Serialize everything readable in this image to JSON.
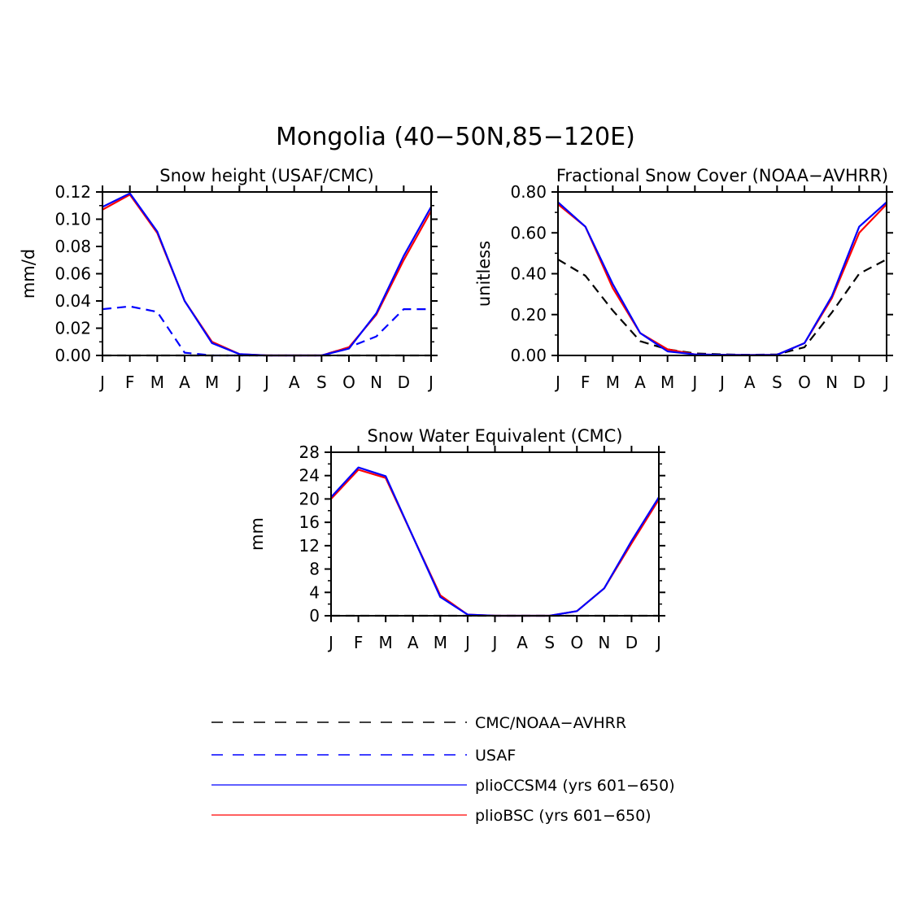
{
  "title": "Mongolia (40−50N,85−120E)",
  "months": [
    "J",
    "F",
    "M",
    "A",
    "M",
    "J",
    "J",
    "A",
    "S",
    "O",
    "N",
    "D",
    "J"
  ],
  "colors": {
    "obs": "#000000",
    "usaf": "#0000ff",
    "ccsm4": "#0000ff",
    "bsc": "#ff0000"
  },
  "chart_data": [
    {
      "type": "line",
      "title": "Snow height (USAF/CMC)",
      "xlabel": "",
      "ylabel": "mm/d",
      "categories": [
        "J",
        "F",
        "M",
        "A",
        "M",
        "J",
        "J",
        "A",
        "S",
        "O",
        "N",
        "D",
        "J"
      ],
      "ylim": [
        0,
        0.12
      ],
      "yticks": [
        0,
        0.02,
        0.04,
        0.06,
        0.08,
        0.1,
        0.12
      ],
      "ytick_labels": [
        "0.00",
        "0.02",
        "0.04",
        "0.06",
        "0.08",
        "0.10",
        "0.12"
      ],
      "series": [
        {
          "name": "CMC/NOAA-AVHRR",
          "style": "obs",
          "values": [
            0,
            0,
            0,
            0,
            0,
            0,
            0,
            0,
            0,
            0,
            0,
            0,
            0
          ]
        },
        {
          "name": "USAF",
          "style": "usaf",
          "values": [
            0.034,
            0.036,
            0.032,
            0.002,
            0,
            0,
            0,
            0,
            0,
            0.006,
            0.014,
            0.034,
            0.034
          ]
        },
        {
          "name": "plioBSC (yrs 601−650)",
          "style": "bsc",
          "values": [
            0.107,
            0.118,
            0.09,
            0.04,
            0.01,
            0.001,
            0,
            0,
            0,
            0.006,
            0.03,
            0.07,
            0.106
          ]
        },
        {
          "name": "plioCCSM4 (yrs 601−650)",
          "style": "ccsm4",
          "values": [
            0.109,
            0.119,
            0.091,
            0.04,
            0.009,
            0.001,
            0,
            0,
            0,
            0.005,
            0.031,
            0.073,
            0.109
          ]
        }
      ]
    },
    {
      "type": "line",
      "title": "Fractional Snow Cover (NOAA−AVHRR)",
      "xlabel": "",
      "ylabel": "unitless",
      "categories": [
        "J",
        "F",
        "M",
        "A",
        "M",
        "J",
        "J",
        "A",
        "S",
        "O",
        "N",
        "D",
        "J"
      ],
      "ylim": [
        0,
        0.8
      ],
      "yticks": [
        0,
        0.2,
        0.4,
        0.6,
        0.8
      ],
      "ytick_labels": [
        "0.00",
        "0.20",
        "0.40",
        "0.60",
        "0.80"
      ],
      "series": [
        {
          "name": "CMC/NOAA-AVHRR",
          "style": "obs",
          "values": [
            0.47,
            0.39,
            0.22,
            0.07,
            0.03,
            0.01,
            0.005,
            0.003,
            0.005,
            0.04,
            0.21,
            0.4,
            0.47
          ]
        },
        {
          "name": "plioBSC (yrs 601−650)",
          "style": "bsc",
          "values": [
            0.74,
            0.63,
            0.33,
            0.11,
            0.03,
            0.005,
            0.003,
            0.002,
            0.003,
            0.06,
            0.28,
            0.6,
            0.74
          ]
        },
        {
          "name": "plioCCSM4 (yrs 601−650)",
          "style": "ccsm4",
          "values": [
            0.75,
            0.63,
            0.35,
            0.11,
            0.02,
            0.005,
            0.003,
            0.002,
            0.003,
            0.06,
            0.29,
            0.63,
            0.75
          ]
        }
      ]
    },
    {
      "type": "line",
      "title": "Snow Water Equivalent (CMC)",
      "xlabel": "",
      "ylabel": "mm",
      "categories": [
        "J",
        "F",
        "M",
        "A",
        "M",
        "J",
        "J",
        "A",
        "S",
        "O",
        "N",
        "D",
        "J"
      ],
      "ylim": [
        0,
        28
      ],
      "yticks": [
        0,
        4,
        8,
        12,
        16,
        20,
        24,
        28
      ],
      "ytick_labels": [
        "0",
        "4",
        "8",
        "12",
        "16",
        "20",
        "24",
        "28"
      ],
      "series": [
        {
          "name": "CMC/NOAA-AVHRR",
          "style": "obs",
          "values": [
            0,
            0,
            0,
            0,
            0,
            0,
            0,
            0,
            0,
            0,
            0,
            0,
            0
          ]
        },
        {
          "name": "plioBSC (yrs 601−650)",
          "style": "bsc",
          "values": [
            20.0,
            25.0,
            23.6,
            13.5,
            3.5,
            0.2,
            0,
            0,
            0,
            0.8,
            4.7,
            12.4,
            19.9
          ]
        },
        {
          "name": "plioCCSM4 (yrs 601−650)",
          "style": "ccsm4",
          "values": [
            20.3,
            25.4,
            23.9,
            13.5,
            3.2,
            0.2,
            0,
            0,
            0,
            0.8,
            4.7,
            12.8,
            20.3
          ]
        }
      ]
    }
  ],
  "legend": [
    {
      "label": "CMC/NOAA−AVHRR",
      "style": "obs"
    },
    {
      "label": "USAF",
      "style": "usaf"
    },
    {
      "label": "plioCCSM4 (yrs 601−650)",
      "style": "ccsm4"
    },
    {
      "label": "plioBSC (yrs 601−650)",
      "style": "bsc"
    }
  ]
}
